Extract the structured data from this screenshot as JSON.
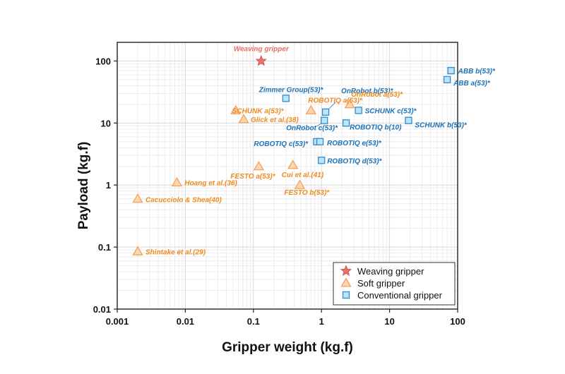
{
  "chart_data": {
    "type": "scatter",
    "xscale": "log",
    "yscale": "log",
    "xlabel": "Gripper weight (kg.f)",
    "ylabel": "Payload (kg.f)",
    "xlim": [
      0.001,
      100
    ],
    "ylim": [
      0.01,
      200
    ],
    "xticks": [
      0.001,
      0.01,
      0.1,
      1,
      10,
      100
    ],
    "xtick_labels": [
      "0.001",
      "0.01",
      "0.1",
      "1",
      "10",
      "100"
    ],
    "yticks": [
      0.01,
      0.1,
      1,
      10,
      100
    ],
    "ytick_labels": [
      "0.01",
      "0.1",
      "1",
      "10",
      "100"
    ],
    "grid": true,
    "legend_position": "bottom-right",
    "series": [
      {
        "name": "Weaving gripper",
        "marker": "star",
        "color": "#e8706e",
        "label_color": "#e8706e",
        "points": [
          {
            "x": 0.13,
            "y": 100,
            "label": "Weaving gripper"
          }
        ]
      },
      {
        "name": "Soft gripper",
        "marker": "triangle",
        "color": "#f4a15a",
        "label_color": "#ef8a1f",
        "points": [
          {
            "x": 0.055,
            "y": 16,
            "label": "SCHUNK a(53)*"
          },
          {
            "x": 0.072,
            "y": 11.5,
            "label": "Glick et al.(38)"
          },
          {
            "x": 0.7,
            "y": 16,
            "label": "ROBOTIQ a(53)*"
          },
          {
            "x": 2.6,
            "y": 20,
            "label": "OnRobot a(53)*"
          },
          {
            "x": 0.12,
            "y": 2,
            "label": "FESTO a(53)*"
          },
          {
            "x": 0.38,
            "y": 2.1,
            "label": "Cui et al.(41)"
          },
          {
            "x": 0.48,
            "y": 1,
            "label": "FESTO b(53)*"
          },
          {
            "x": 0.0075,
            "y": 1.1,
            "label": "Hoang et al.(36)"
          },
          {
            "x": 0.002,
            "y": 0.6,
            "label": "Cacucciolo & Shea(40)"
          },
          {
            "x": 0.002,
            "y": 0.085,
            "label": "Shintake et al.(29)"
          }
        ]
      },
      {
        "name": "Conventional gripper",
        "marker": "square",
        "color": "#5bb6e6",
        "label_color": "#1d72b8",
        "points": [
          {
            "x": 80,
            "y": 70,
            "label": "ABB b(53)*"
          },
          {
            "x": 70,
            "y": 50,
            "label": "ABB a(53)*"
          },
          {
            "x": 0.3,
            "y": 25,
            "label": "Zimmer Group(53)*"
          },
          {
            "x": 1.15,
            "y": 15,
            "label": "OnRobot b(53)*"
          },
          {
            "x": 3.5,
            "y": 16,
            "label": "SCHUNK c(53)*"
          },
          {
            "x": 1.1,
            "y": 11,
            "label": "OnRobot c(53)*"
          },
          {
            "x": 2.3,
            "y": 10,
            "label": "ROBOTIQ b(10)"
          },
          {
            "x": 19,
            "y": 11,
            "label": "SCHUNK b(53)*"
          },
          {
            "x": 0.85,
            "y": 5,
            "label": "ROBOTIQ c(53)*"
          },
          {
            "x": 0.95,
            "y": 5,
            "label": "ROBOTIQ e(53)*"
          },
          {
            "x": 1.0,
            "y": 2.5,
            "label": "ROBOTIQ d(53)*"
          }
        ]
      }
    ]
  }
}
